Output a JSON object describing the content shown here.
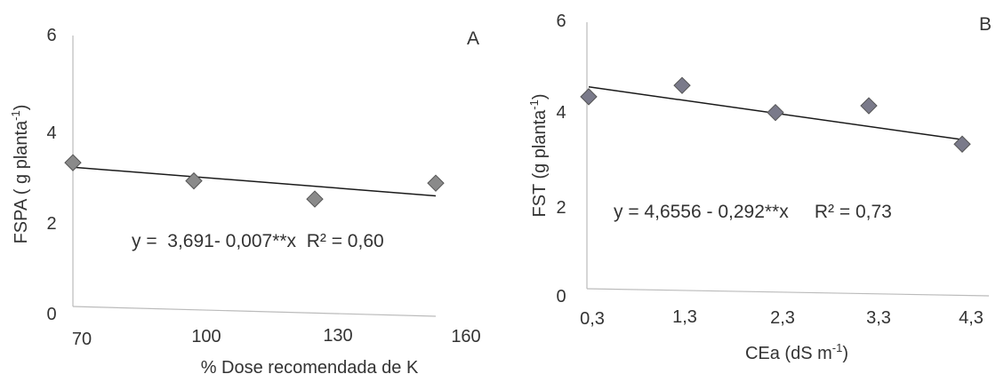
{
  "chart_data": [
    {
      "type": "scatter",
      "panel_label": "A",
      "xlabel": "% Dose recomendada de K",
      "ylabel": "FSPA ( g planta-1)",
      "ylabel_main": "FSPA ( g planta",
      "ylabel_sup": "-1",
      "ylabel_close": ")",
      "xticks": [
        "70",
        "100",
        "130",
        "160"
      ],
      "yticks": [
        "0",
        "2",
        "4",
        "6"
      ],
      "xlim": [
        70,
        160
      ],
      "ylim": [
        0,
        6
      ],
      "points": [
        {
          "x": 70,
          "y": 3.3
        },
        {
          "x": 100,
          "y": 2.9
        },
        {
          "x": 130,
          "y": 2.5
        },
        {
          "x": 160,
          "y": 2.85
        }
      ],
      "trendline": {
        "intercept": 3.691,
        "slope": -0.007
      },
      "equation": "y =  3,691- 0,007**x  R² = 0,60",
      "colors": {
        "marker": "#8a8a8a",
        "line": "#1a1a1a",
        "axis": "#bbbbbb"
      }
    },
    {
      "type": "scatter",
      "panel_label": "B",
      "xlabel": "CEa (dS m-1)",
      "xlabel_main": "CEa (dS m",
      "xlabel_sup": "-1",
      "xlabel_close": ")",
      "ylabel": "FST (g planta-1)",
      "ylabel_main": "FST (g planta",
      "ylabel_sup": "-1",
      "ylabel_close": ")",
      "xticks": [
        "0,3",
        "1,3",
        "2,3",
        "3,3",
        "4,3"
      ],
      "yticks": [
        "0",
        "2",
        "4",
        "6"
      ],
      "xlim": [
        0.3,
        4.3
      ],
      "ylim": [
        0,
        6
      ],
      "points": [
        {
          "x": 0.3,
          "y": 4.35
        },
        {
          "x": 1.3,
          "y": 4.6
        },
        {
          "x": 2.3,
          "y": 4.0
        },
        {
          "x": 3.3,
          "y": 4.15
        },
        {
          "x": 4.3,
          "y": 3.3
        }
      ],
      "trendline": {
        "intercept": 4.6556,
        "slope": -0.292
      },
      "equation": "y = 4,6556 - 0,292**x     R² = 0,73",
      "colors": {
        "marker": "#7a7a8a",
        "line": "#1a1a1a",
        "axis": "#bbbbbb"
      }
    }
  ]
}
